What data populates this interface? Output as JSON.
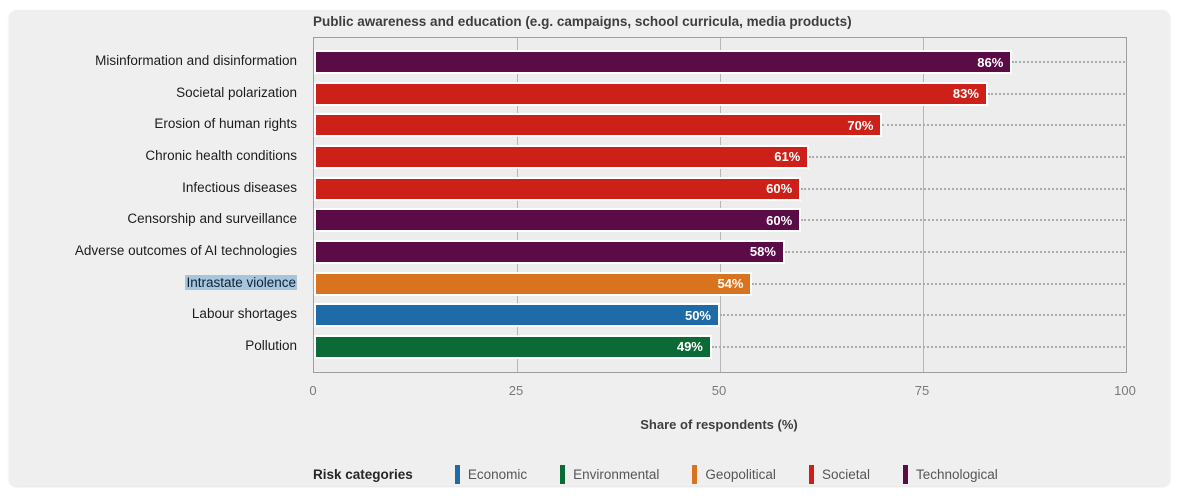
{
  "chart": {
    "title": "Public awareness and education (e.g. campaigns, school curricula, media products)",
    "xlabel": "Share of respondents (%)",
    "legend_title": "Risk categories"
  },
  "colors": {
    "Economic": "#1e6ba8",
    "Environmental": "#0c6a36",
    "Geopolitical": "#d8731f",
    "Societal": "#cd2018",
    "Technological": "#5b0b45"
  },
  "chart_data": {
    "type": "bar",
    "orientation": "horizontal",
    "title": "Public awareness and education (e.g. campaigns, school curricula, media products)",
    "xlabel": "Share of respondents (%)",
    "xlim": [
      0,
      100
    ],
    "x_ticks": [
      0,
      25,
      50,
      75,
      100
    ],
    "grid": "vertical",
    "legend_position": "bottom",
    "legend_title": "Risk categories",
    "legend_entries": [
      "Economic",
      "Environmental",
      "Geopolitical",
      "Societal",
      "Technological"
    ],
    "bars": [
      {
        "label": "Misinformation and disinformation",
        "value": 86,
        "value_label": "86%",
        "category": "Technological",
        "highlighted": false
      },
      {
        "label": "Societal polarization",
        "value": 83,
        "value_label": "83%",
        "category": "Societal",
        "highlighted": false
      },
      {
        "label": "Erosion of human rights",
        "value": 70,
        "value_label": "70%",
        "category": "Societal",
        "highlighted": false
      },
      {
        "label": "Chronic health conditions",
        "value": 61,
        "value_label": "61%",
        "category": "Societal",
        "highlighted": false
      },
      {
        "label": "Infectious diseases",
        "value": 60,
        "value_label": "60%",
        "category": "Societal",
        "highlighted": false
      },
      {
        "label": "Censorship and surveillance",
        "value": 60,
        "value_label": "60%",
        "category": "Technological",
        "highlighted": false
      },
      {
        "label": "Adverse outcomes of AI technologies",
        "value": 58,
        "value_label": "58%",
        "category": "Technological",
        "highlighted": false
      },
      {
        "label": "Intrastate violence",
        "value": 54,
        "value_label": "54%",
        "category": "Geopolitical",
        "highlighted": true
      },
      {
        "label": "Labour shortages",
        "value": 50,
        "value_label": "50%",
        "category": "Economic",
        "highlighted": false
      },
      {
        "label": "Pollution",
        "value": 49,
        "value_label": "49%",
        "category": "Environmental",
        "highlighted": false
      }
    ]
  }
}
